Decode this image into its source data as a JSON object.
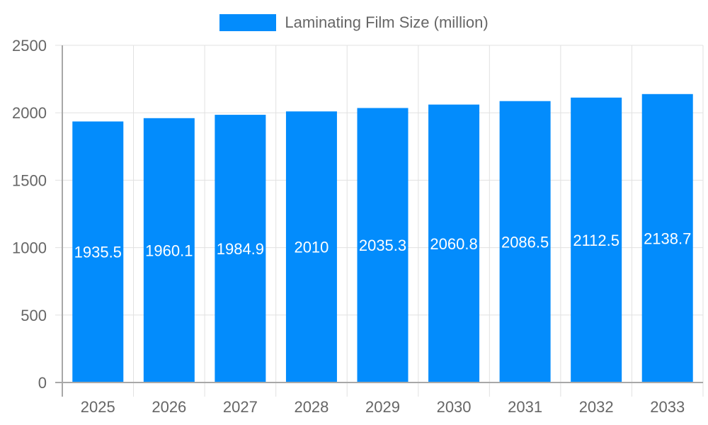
{
  "chart_data": {
    "type": "bar",
    "title": "",
    "xlabel": "",
    "ylabel": "",
    "categories": [
      "2025",
      "2026",
      "2027",
      "2028",
      "2029",
      "2030",
      "2031",
      "2032",
      "2033"
    ],
    "series": [
      {
        "name": "Laminating Film Size (million)",
        "values": [
          1935.5,
          1960.1,
          1984.9,
          2010,
          2035.3,
          2060.8,
          2086.5,
          2112.5,
          2138.7
        ],
        "color": "#038cfc"
      }
    ],
    "ylim": [
      0,
      2500
    ],
    "yticks": [
      0,
      500,
      1000,
      1500,
      2000,
      2500
    ],
    "grid": true,
    "legend_position": "top",
    "data_labels": "inside-center"
  },
  "legend": {
    "label": "Laminating Film Size (million)",
    "color": "#038cfc"
  }
}
